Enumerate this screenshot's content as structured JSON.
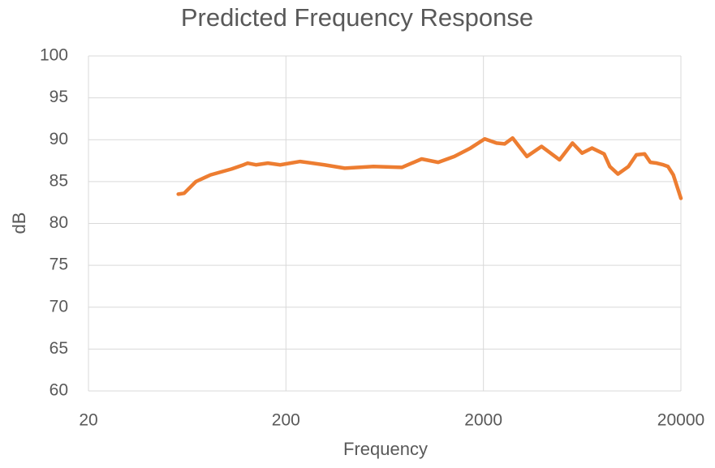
{
  "chart_data": {
    "type": "line",
    "title": "Predicted Frequency Response",
    "x_label": "Frequency",
    "y_label": "dB",
    "x_scale": "log",
    "grid": true,
    "color": "#ed7d31",
    "x": [
      57,
      61,
      70,
      83,
      106,
      122,
      128,
      141,
      162,
      187,
      236,
      313,
      397,
      555,
      774,
      973,
      1180,
      1425,
      1720,
      2030,
      2330,
      2560,
      2810,
      3320,
      3940,
      4860,
      5650,
      6320,
      7090,
      8170,
      8730,
      9600,
      10850,
      11900,
      13100,
      14000,
      15100,
      16300,
      17200,
      18300,
      20000
    ],
    "values": [
      83.5,
      83.6,
      85.0,
      85.8,
      86.5,
      87.0,
      87.2,
      87.0,
      87.2,
      87.0,
      87.4,
      87.0,
      86.6,
      86.8,
      86.7,
      87.7,
      87.3,
      88.0,
      89.0,
      90.1,
      89.6,
      89.5,
      90.2,
      88.0,
      89.2,
      87.6,
      89.6,
      88.4,
      89.0,
      88.3,
      86.8,
      85.9,
      86.8,
      88.2,
      88.3,
      87.3,
      87.2,
      87.0,
      86.8,
      85.8,
      83.0
    ],
    "xlim": [
      20,
      20000
    ],
    "xticks": [
      20,
      200,
      2000,
      20000
    ],
    "ylim": [
      60,
      100
    ],
    "yticks": [
      60,
      65,
      70,
      75,
      80,
      85,
      90,
      95,
      100
    ]
  }
}
